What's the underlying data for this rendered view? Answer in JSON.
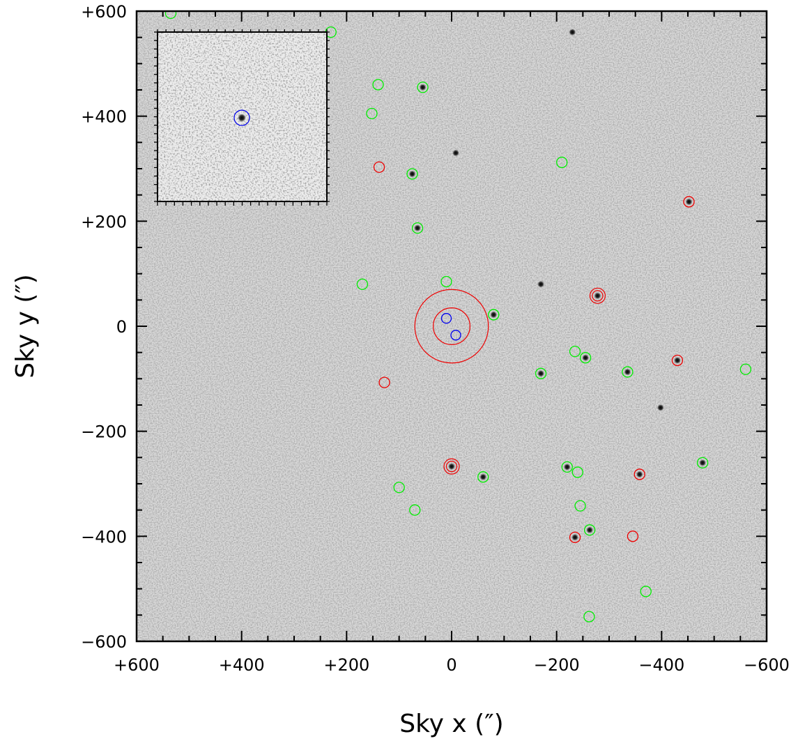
{
  "chart_data": {
    "type": "scatter",
    "title": "",
    "xlabel": "Sky x (″)",
    "ylabel": "Sky y (″)",
    "xlim": [
      600,
      -600
    ],
    "ylim": [
      -600,
      600
    ],
    "x_ticks": [
      "+600",
      "+400",
      "+200",
      "0",
      "−200",
      "−400",
      "−600"
    ],
    "y_ticks": [
      "+600",
      "+400",
      "+200",
      "0",
      "−200",
      "−400",
      "−600"
    ],
    "x_tick_values": [
      600,
      400,
      200,
      0,
      -200,
      -400,
      -600
    ],
    "y_tick_values": [
      600,
      400,
      200,
      0,
      -200,
      -400,
      -600
    ],
    "grid": false,
    "legend": "none",
    "background": "grayscale sky image",
    "colors": {
      "green": "#00ee00",
      "red": "#ee0000",
      "blue": "#0000ee",
      "frame": "#000000"
    },
    "central_annuli": {
      "x": 0,
      "y": 0,
      "radii": [
        35,
        70
      ],
      "color": "red"
    },
    "series": [
      {
        "color": "green",
        "points": [
          [
            230,
            560
          ],
          [
            535,
            596
          ],
          [
            55,
            455
          ],
          [
            140,
            460
          ],
          [
            152,
            405
          ],
          [
            -210,
            312
          ],
          [
            75,
            290
          ],
          [
            65,
            187
          ],
          [
            10,
            85
          ],
          [
            170,
            80
          ],
          [
            -80,
            22
          ],
          [
            -255,
            -60
          ],
          [
            -235,
            -48
          ],
          [
            -170,
            -90
          ],
          [
            -335,
            -87
          ],
          [
            -560,
            -82
          ],
          [
            -478,
            -260
          ],
          [
            -220,
            -268
          ],
          [
            -60,
            -287
          ],
          [
            -240,
            -278
          ],
          [
            100,
            -307
          ],
          [
            70,
            -350
          ],
          [
            -245,
            -342
          ],
          [
            -263,
            -388
          ],
          [
            -370,
            -505
          ],
          [
            -262,
            -553
          ]
        ]
      },
      {
        "color": "red",
        "points": [
          [
            138,
            303
          ],
          [
            -452,
            237
          ],
          [
            -430,
            -65
          ],
          [
            128,
            -107
          ],
          [
            -358,
            -282
          ],
          [
            -235,
            -402
          ],
          [
            -345,
            -400
          ]
        ]
      },
      {
        "color": "red-double",
        "points": [
          [
            -278,
            58
          ],
          [
            0,
            -267
          ]
        ]
      },
      {
        "color": "blue",
        "points": [
          [
            10,
            15
          ],
          [
            -8,
            -17
          ]
        ]
      }
    ],
    "dark_sources": [
      [
        -230,
        560
      ],
      [
        55,
        455
      ],
      [
        75,
        290
      ],
      [
        65,
        187
      ],
      [
        -80,
        22
      ],
      [
        -170,
        80
      ],
      [
        -278,
        58
      ],
      [
        -255,
        -60
      ],
      [
        -170,
        -90
      ],
      [
        -335,
        -87
      ],
      [
        -452,
        237
      ],
      [
        -430,
        -65
      ],
      [
        -358,
        -282
      ],
      [
        -220,
        -268
      ],
      [
        -60,
        -287
      ],
      [
        0,
        -267
      ],
      [
        -263,
        -388
      ],
      [
        -235,
        -402
      ],
      [
        -398,
        -155
      ],
      [
        -8,
        330
      ],
      [
        -478,
        -260
      ]
    ],
    "inset": {
      "description": "zoomed cutout",
      "marker": {
        "color": "blue"
      }
    }
  }
}
